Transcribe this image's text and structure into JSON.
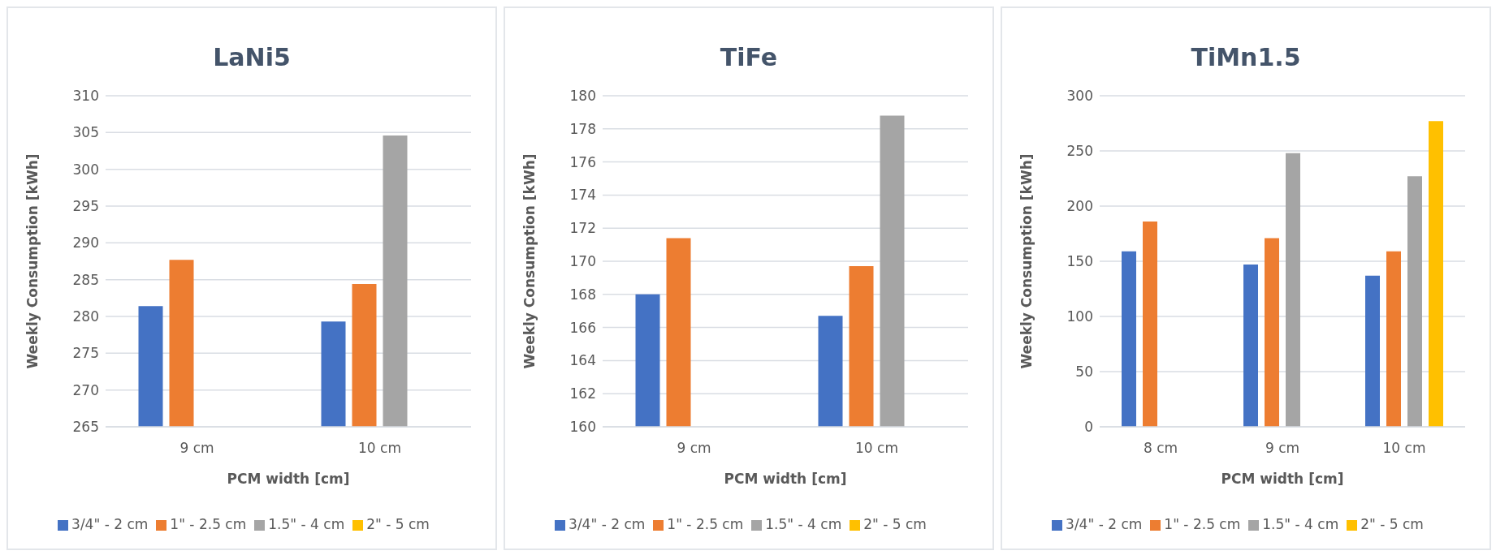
{
  "chart_data": [
    {
      "type": "bar",
      "title": "LaNi5",
      "xlabel": "PCM width [cm]",
      "ylabel": "Weekly Consumption [kWh]",
      "categories": [
        "9 cm",
        "10 cm"
      ],
      "series": [
        {
          "name": "3/4\" - 2 cm",
          "color": "#4472c4",
          "values": [
            281.4,
            279.3
          ]
        },
        {
          "name": "1\" - 2.5 cm",
          "color": "#ed7d31",
          "values": [
            287.7,
            284.4
          ]
        },
        {
          "name": "1.5\" - 4 cm",
          "color": "#a5a5a5",
          "values": [
            null,
            304.6
          ]
        },
        {
          "name": "2\" - 5 cm",
          "color": "#ffc000",
          "values": [
            null,
            null
          ]
        }
      ],
      "ylim": [
        265,
        310
      ],
      "yticks": [
        265,
        270,
        275,
        280,
        285,
        290,
        295,
        300,
        305,
        310
      ],
      "grid": "y",
      "legend": "bottom"
    },
    {
      "type": "bar",
      "title": "TiFe",
      "xlabel": "PCM width [cm]",
      "ylabel": "Weekly Consumption [kWh]",
      "categories": [
        "9 cm",
        "10 cm"
      ],
      "series": [
        {
          "name": "3/4\" - 2 cm",
          "color": "#4472c4",
          "values": [
            168.0,
            166.7
          ]
        },
        {
          "name": "1\" - 2.5 cm",
          "color": "#ed7d31",
          "values": [
            171.4,
            169.7
          ]
        },
        {
          "name": "1.5\" - 4 cm",
          "color": "#a5a5a5",
          "values": [
            null,
            178.8
          ]
        },
        {
          "name": "2\" - 5 cm",
          "color": "#ffc000",
          "values": [
            null,
            null
          ]
        }
      ],
      "ylim": [
        160,
        180
      ],
      "yticks": [
        160,
        162,
        164,
        166,
        168,
        170,
        172,
        174,
        176,
        178,
        180
      ],
      "grid": "y",
      "legend": "bottom"
    },
    {
      "type": "bar",
      "title": "TiMn1.5",
      "xlabel": "PCM width [cm]",
      "ylabel": "Weekly Consumption [kWh]",
      "categories": [
        "8 cm",
        "9 cm",
        "10 cm"
      ],
      "series": [
        {
          "name": "3/4\" - 2 cm",
          "color": "#4472c4",
          "values": [
            159,
            147,
            137
          ]
        },
        {
          "name": "1\" - 2.5 cm",
          "color": "#ed7d31",
          "values": [
            186,
            171,
            159
          ]
        },
        {
          "name": "1.5\" - 4 cm",
          "color": "#a5a5a5",
          "values": [
            null,
            248,
            227
          ]
        },
        {
          "name": "2\" - 5 cm",
          "color": "#ffc000",
          "values": [
            null,
            null,
            277
          ]
        }
      ],
      "ylim": [
        0,
        300
      ],
      "yticks": [
        0,
        50,
        100,
        150,
        200,
        250,
        300
      ],
      "grid": "y",
      "legend": "bottom"
    }
  ]
}
